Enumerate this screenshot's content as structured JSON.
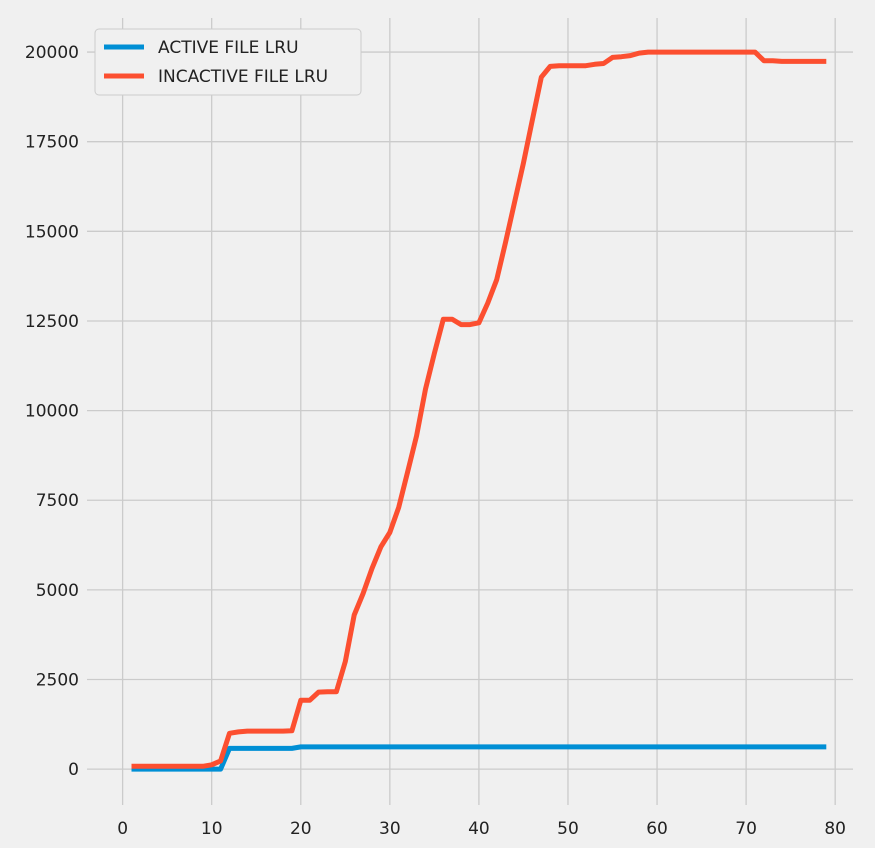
{
  "chart_data": {
    "type": "line",
    "title": "",
    "xlabel": "",
    "ylabel": "",
    "xlim": [
      -4,
      82
    ],
    "ylim": [
      -1000,
      20950
    ],
    "x_ticks": [
      0,
      10,
      20,
      30,
      40,
      50,
      60,
      70,
      80
    ],
    "y_ticks": [
      0,
      2500,
      5000,
      7500,
      10000,
      12500,
      15000,
      17500,
      20000
    ],
    "grid": true,
    "legend_position": "top-left",
    "series": [
      {
        "name": "ACTIVE FILE LRU",
        "color": "#008fd5",
        "points": [
          [
            1,
            0
          ],
          [
            2,
            0
          ],
          [
            5,
            0
          ],
          [
            10,
            0
          ],
          [
            11,
            0
          ],
          [
            12,
            580
          ],
          [
            14,
            580
          ],
          [
            16,
            580
          ],
          [
            18,
            580
          ],
          [
            19,
            580
          ],
          [
            20,
            620
          ],
          [
            21,
            620
          ],
          [
            25,
            620
          ],
          [
            30,
            620
          ],
          [
            40,
            620
          ],
          [
            50,
            620
          ],
          [
            60,
            620
          ],
          [
            70,
            620
          ],
          [
            79,
            620
          ]
        ]
      },
      {
        "name": "INCACTIVE FILE LRU",
        "color": "#fc4f30",
        "points": [
          [
            1,
            80
          ],
          [
            2,
            80
          ],
          [
            5,
            80
          ],
          [
            8,
            80
          ],
          [
            9,
            80
          ],
          [
            10,
            120
          ],
          [
            11,
            230
          ],
          [
            12,
            1000
          ],
          [
            13,
            1040
          ],
          [
            14,
            1060
          ],
          [
            15,
            1060
          ],
          [
            17,
            1060
          ],
          [
            18,
            1060
          ],
          [
            19,
            1070
          ],
          [
            20,
            1920
          ],
          [
            21,
            1920
          ],
          [
            22,
            2150
          ],
          [
            23,
            2160
          ],
          [
            24,
            2160
          ],
          [
            25,
            3000
          ],
          [
            26,
            4300
          ],
          [
            27,
            4900
          ],
          [
            28,
            5600
          ],
          [
            29,
            6200
          ],
          [
            30,
            6600
          ],
          [
            31,
            7300
          ],
          [
            32,
            8300
          ],
          [
            33,
            9300
          ],
          [
            34,
            10600
          ],
          [
            35,
            11600
          ],
          [
            36,
            12550
          ],
          [
            37,
            12550
          ],
          [
            38,
            12400
          ],
          [
            39,
            12400
          ],
          [
            40,
            12450
          ],
          [
            41,
            13000
          ],
          [
            42,
            13650
          ],
          [
            43,
            14700
          ],
          [
            44,
            15800
          ],
          [
            45,
            16900
          ],
          [
            46,
            18100
          ],
          [
            47,
            19300
          ],
          [
            48,
            19600
          ],
          [
            49,
            19620
          ],
          [
            50,
            19620
          ],
          [
            52,
            19620
          ],
          [
            53,
            19660
          ],
          [
            54,
            19680
          ],
          [
            55,
            19850
          ],
          [
            56,
            19870
          ],
          [
            57,
            19900
          ],
          [
            58,
            19970
          ],
          [
            59,
            20000
          ],
          [
            62,
            20000
          ],
          [
            65,
            20000
          ],
          [
            70,
            20000
          ],
          [
            71,
            20000
          ],
          [
            72,
            19760
          ],
          [
            73,
            19760
          ],
          [
            74,
            19740
          ],
          [
            76,
            19740
          ],
          [
            78,
            19740
          ],
          [
            79,
            19740
          ]
        ]
      }
    ]
  }
}
